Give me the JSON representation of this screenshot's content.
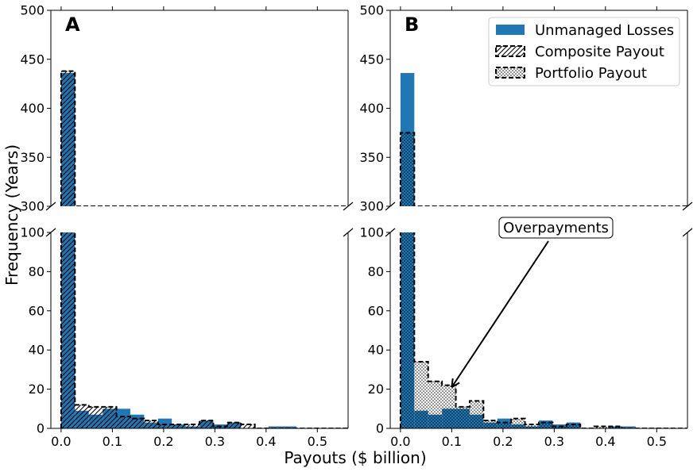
{
  "chart_data": {
    "type": "bar",
    "xlabel": "Payouts ($ billion)",
    "ylabel": "Frequency (Years)",
    "xlim": [
      -0.02,
      0.56
    ],
    "xticks": [
      0.0,
      0.1,
      0.2,
      0.3,
      0.4,
      0.5
    ],
    "xtick_labels": [
      "0.0",
      "0.1",
      "0.2",
      "0.3",
      "0.4",
      "0.5"
    ],
    "y_upper_range": [
      300,
      500
    ],
    "y_upper_ticks": [
      300,
      350,
      400,
      450,
      500
    ],
    "y_lower_range": [
      0,
      100
    ],
    "y_lower_ticks": [
      0,
      20,
      40,
      60,
      80,
      100
    ],
    "bin_width": 0.027,
    "bin_start": 0.0,
    "colors": {
      "unmanaged": "#1f77b4",
      "outline": "#000000"
    },
    "panels": [
      {
        "label": "A",
        "series": [
          {
            "name": "Unmanaged Losses",
            "style": "filled",
            "values": [
              436,
              9,
              7,
              10,
              10,
              7,
              3,
              5,
              2,
              1,
              4,
              2,
              3,
              0,
              0,
              1,
              1,
              0,
              0,
              0,
              0,
              1,
              0,
              0,
              0,
              0
            ]
          },
          {
            "name": "Composite Payout",
            "style": "hatch",
            "values": [
              438,
              12,
              11,
              11,
              6,
              5,
              4,
              2,
              2,
              2,
              4,
              1,
              3,
              2,
              0,
              0,
              0,
              0,
              0,
              0,
              0,
              0,
              0,
              0,
              0,
              0
            ]
          }
        ]
      },
      {
        "label": "B",
        "series": [
          {
            "name": "Unmanaged Losses",
            "style": "filled",
            "values": [
              436,
              9,
              7,
              10,
              10,
              7,
              3,
              5,
              2,
              1,
              4,
              2,
              3,
              0,
              0,
              1,
              1,
              0,
              0,
              0,
              0,
              1,
              0,
              0,
              0,
              0
            ]
          },
          {
            "name": "Portfolio Payout",
            "style": "dots",
            "values": [
              375,
              34,
              24,
              22,
              11,
              14,
              4,
              3,
              5,
              2,
              3,
              1,
              2,
              0,
              1,
              1,
              0,
              0,
              0,
              0,
              0,
              0,
              0,
              0,
              0,
              0
            ]
          }
        ],
        "annotation": {
          "text": "Overpayments",
          "points_to": {
            "x": 0.1,
            "y": 21
          }
        }
      }
    ],
    "legend": {
      "placement": "top-right of panel B",
      "entries": [
        "Unmanaged Losses",
        "Composite Payout",
        "Portfolio Payout"
      ]
    }
  }
}
